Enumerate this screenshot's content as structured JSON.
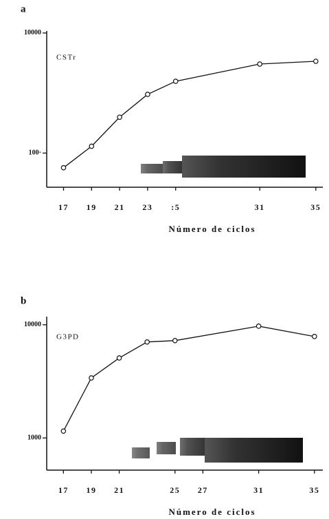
{
  "chart_data": [
    {
      "type": "line",
      "label": "a",
      "annotation": "CSTr",
      "xlabel": "Número de ciclos",
      "x": [
        17,
        19,
        21,
        23,
        25,
        31,
        35
      ],
      "values": [
        57,
        130,
        396,
        950,
        1570,
        3040,
        3380
      ],
      "color": "#111111",
      "log_y": true,
      "xlim": [
        15.8,
        35.5
      ],
      "xticks": [
        17,
        19,
        21,
        23,
        {
          "value": 25,
          "label": ":5"
        },
        31,
        35
      ],
      "ylim": [
        27,
        10800
      ],
      "yticks": [
        {
          "value": 100,
          "label": "100·"
        },
        10000
      ]
    },
    {
      "type": "line",
      "label": "b",
      "annotation": "G3PD",
      "xlabel": "Número de ciclos",
      "x": [
        17,
        19,
        21,
        23,
        25,
        31,
        35
      ],
      "values": [
        1150,
        3390,
        5090,
        7050,
        7250,
        9720,
        7880
      ],
      "color": "#111111",
      "log_y": true,
      "xlim": [
        15.8,
        35.6
      ],
      "xticks": [
        17,
        19,
        21,
        25,
        27,
        31,
        35
      ],
      "ylim": [
        520,
        11800
      ],
      "yticks": [
        1000,
        10000
      ]
    }
  ]
}
